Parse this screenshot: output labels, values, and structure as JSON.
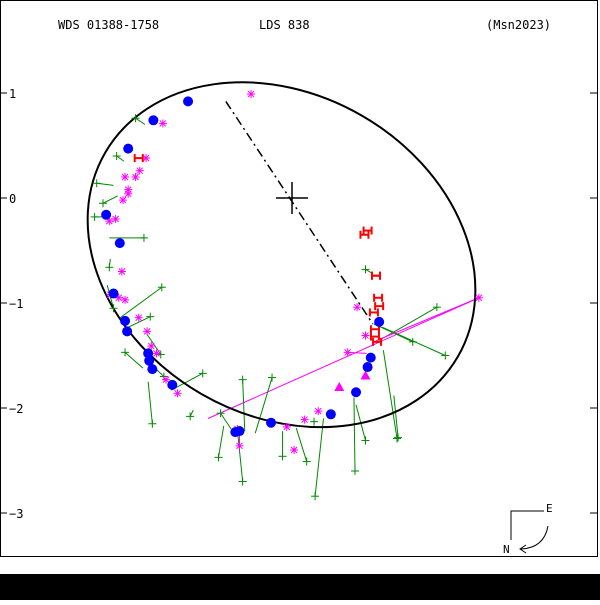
{
  "header": {
    "wds_id": "WDS 01388-1758",
    "discoverer": "LDS 838",
    "orbit_ref": "(Msn2023)"
  },
  "compass": {
    "east_label": "E",
    "north_label": "N"
  },
  "chart_data": {
    "type": "scatter",
    "title": "",
    "xlabel": "",
    "ylabel": "",
    "xlim": [
      2.75,
      -2.95
    ],
    "ylim": [
      -3.4,
      1.9
    ],
    "y_ticks": [
      1,
      0,
      -1,
      -2,
      -3
    ],
    "y_tick_labels": [
      "1",
      "0",
      "−1",
      "−2",
      "−3"
    ],
    "grid": false,
    "colors": {
      "orbit": "#000000",
      "primary": "#000000",
      "node_line": "#000000",
      "blue_dots": "#0000ff",
      "green_crosses": "#008800",
      "magenta_stars": "#ff00ff",
      "red_h": "#ff0000",
      "magenta_triangles": "#ff00ff"
    },
    "orbit": {
      "center": [
        -0.1,
        -0.54
      ],
      "semi_axes": [
        1.53,
        1.94
      ],
      "tilt_deg": 120
    },
    "primary_star": [
      0,
      0
    ],
    "line_of_nodes": [
      [
        -0.63,
        0.92
      ],
      [
        0.77,
        -1.2
      ]
    ],
    "blue_dots": [
      [
        -0.99,
        0.92
      ],
      [
        -1.32,
        0.74
      ],
      [
        -1.56,
        0.47
      ],
      [
        -1.77,
        -0.16
      ],
      [
        -1.64,
        -0.43
      ],
      [
        -1.7,
        -0.91
      ],
      [
        -1.59,
        -1.17
      ],
      [
        -1.57,
        -1.27
      ],
      [
        -1.37,
        -1.48
      ],
      [
        -1.36,
        -1.55
      ],
      [
        -1.33,
        -1.63
      ],
      [
        -1.14,
        -1.78
      ],
      [
        -0.54,
        -2.23
      ],
      [
        -0.5,
        -2.22
      ],
      [
        -0.2,
        -2.14
      ],
      [
        0.37,
        -2.06
      ],
      [
        0.61,
        -1.85
      ],
      [
        0.72,
        -1.61
      ],
      [
        0.75,
        -1.52
      ],
      [
        0.83,
        -1.18
      ]
    ],
    "green_crosses": [
      {
        "pt": [
          -1.49,
          0.76
        ],
        "fit": [
          -1.4,
          0.7
        ]
      },
      {
        "pt": [
          -1.67,
          0.4
        ],
        "fit": [
          -1.6,
          0.35
        ]
      },
      {
        "pt": [
          -1.86,
          0.14
        ],
        "fit": [
          -1.7,
          0.12
        ]
      },
      {
        "pt": [
          -1.8,
          -0.05
        ],
        "fit": [
          -1.66,
          0.02
        ]
      },
      {
        "pt": [
          -1.88,
          -0.18
        ],
        "fit": [
          -1.75,
          -0.18
        ]
      },
      {
        "pt": [
          -1.41,
          -0.38
        ],
        "fit": [
          -1.74,
          -0.38
        ]
      },
      {
        "pt": [
          -1.74,
          -0.66
        ],
        "fit": [
          -1.73,
          -0.58
        ]
      },
      {
        "pt": [
          -1.7,
          -1.05
        ],
        "fit": [
          -1.76,
          -0.83
        ]
      },
      {
        "pt": [
          -1.24,
          -0.85
        ],
        "fit": [
          -1.65,
          -1.15
        ]
      },
      {
        "pt": [
          -1.35,
          -1.13
        ],
        "fit": [
          -1.6,
          -1.25
        ]
      },
      {
        "pt": [
          -1.25,
          -1.49
        ],
        "fit": [
          -1.38,
          -1.3
        ]
      },
      {
        "pt": [
          -1.59,
          -1.47
        ],
        "fit": [
          -1.42,
          -1.62
        ]
      },
      {
        "pt": [
          -1.22,
          -1.7
        ],
        "fit": [
          -1.38,
          -1.55
        ]
      },
      {
        "pt": [
          -1.33,
          -2.15
        ],
        "fit": [
          -1.37,
          -1.75
        ]
      },
      {
        "pt": [
          -0.85,
          -1.67
        ],
        "fit": [
          -1.15,
          -1.83
        ]
      },
      {
        "pt": [
          -0.97,
          -2.08
        ],
        "fit": [
          -0.94,
          -2.02
        ]
      },
      {
        "pt": [
          -0.68,
          -2.05
        ],
        "fit": [
          -0.58,
          -2.2
        ]
      },
      {
        "pt": [
          -0.7,
          -2.47
        ],
        "fit": [
          -0.65,
          -2.17
        ]
      },
      {
        "pt": [
          -0.47,
          -2.7
        ],
        "fit": [
          -0.52,
          -2.21
        ]
      },
      {
        "pt": [
          -0.47,
          -1.73
        ],
        "fit": [
          -0.45,
          -2.22
        ]
      },
      {
        "pt": [
          -0.19,
          -1.71
        ],
        "fit": [
          -0.35,
          -2.24
        ]
      },
      {
        "pt": [
          -0.09,
          -2.46
        ],
        "fit": [
          -0.09,
          -2.22
        ]
      },
      {
        "pt": [
          0.14,
          -2.51
        ],
        "fit": [
          0.04,
          -2.19
        ]
      },
      {
        "pt": [
          0.21,
          -2.13
        ],
        "fit": [
          0.21,
          -2.15
        ]
      },
      {
        "pt": [
          0.22,
          -2.84
        ],
        "fit": [
          0.3,
          -2.1
        ]
      },
      {
        "pt": [
          0.6,
          -2.6
        ],
        "fit": [
          0.59,
          -1.9
        ]
      },
      {
        "pt": [
          0.7,
          -2.31
        ],
        "fit": [
          0.61,
          -1.97
        ]
      },
      {
        "pt": [
          1.0,
          -2.29
        ],
        "fit": [
          0.87,
          -1.45
        ]
      },
      {
        "pt": [
          1.38,
          -1.04
        ],
        "fit": [
          0.84,
          -1.35
        ]
      },
      {
        "pt": [
          1.15,
          -1.37
        ],
        "fit": [
          0.78,
          -1.2
        ]
      },
      {
        "pt": [
          1.46,
          -1.5
        ],
        "fit": [
          0.86,
          -1.23
        ]
      },
      {
        "pt": [
          0.7,
          -0.68
        ],
        "fit": [
          0.77,
          -0.72
        ]
      },
      {
        "pt": [
          1.01,
          -2.28
        ],
        "fit": [
          0.97,
          -1.88
        ]
      }
    ],
    "magenta_stars": [
      {
        "pt": [
          -0.39,
          0.99
        ]
      },
      {
        "pt": [
          -1.23,
          0.71
        ]
      },
      {
        "pt": [
          -1.39,
          0.38
        ]
      },
      {
        "pt": [
          -1.45,
          0.26
        ]
      },
      {
        "pt": [
          -1.59,
          0.2
        ]
      },
      {
        "pt": [
          -1.49,
          0.2
        ]
      },
      {
        "pt": [
          -1.56,
          0.08
        ]
      },
      {
        "pt": [
          -1.56,
          0.04
        ]
      },
      {
        "pt": [
          -1.61,
          -0.02
        ]
      },
      {
        "pt": [
          -1.68,
          -0.2
        ]
      },
      {
        "pt": [
          -1.74,
          -0.22
        ]
      },
      {
        "pt": [
          -1.62,
          -0.7
        ]
      },
      {
        "pt": [
          -1.73,
          -0.92
        ]
      },
      {
        "pt": [
          -1.65,
          -0.95
        ]
      },
      {
        "pt": [
          -1.59,
          -0.97
        ]
      },
      {
        "pt": [
          -1.46,
          -1.14
        ]
      },
      {
        "pt": [
          -1.58,
          -1.27
        ]
      },
      {
        "pt": [
          -1.38,
          -1.27
        ]
      },
      {
        "pt": [
          -1.34,
          -1.41
        ]
      },
      {
        "pt": [
          -1.29,
          -1.48
        ]
      },
      {
        "pt": [
          -1.2,
          -1.73
        ]
      },
      {
        "pt": [
          -1.09,
          -1.86
        ]
      },
      {
        "pt": [
          -0.52,
          -2.2
        ],
        "fit": [
          -0.52,
          -2.21
        ]
      },
      {
        "pt": [
          -0.5,
          -2.36
        ],
        "fit": [
          -0.5,
          -2.26
        ]
      },
      {
        "pt": [
          -0.05,
          -2.18
        ]
      },
      {
        "pt": [
          0.02,
          -2.4
        ]
      },
      {
        "pt": [
          0.12,
          -2.11
        ]
      },
      {
        "pt": [
          1.78,
          -0.95
        ],
        "fit": [
          0.8,
          -1.36
        ]
      },
      {
        "pt": [
          0.53,
          -1.47
        ],
        "fit": [
          0.71,
          -1.48
        ]
      },
      {
        "pt": [
          0.62,
          -1.04
        ]
      },
      {
        "pt": [
          0.7,
          -1.31
        ]
      },
      {
        "pt": [
          0.25,
          -2.03
        ]
      }
    ],
    "red_h": [
      [
        -1.46,
        0.38
      ],
      [
        0.72,
        -0.31
      ],
      [
        0.69,
        -0.35
      ],
      [
        0.8,
        -0.74
      ],
      [
        0.8,
        -0.74
      ],
      [
        0.82,
        -0.95
      ],
      [
        0.83,
        -1.03
      ],
      [
        0.78,
        -1.09
      ],
      [
        0.79,
        -1.25
      ],
      [
        0.79,
        -1.32
      ],
      [
        0.81,
        -1.37
      ]
    ],
    "magenta_triangles": [
      [
        0.7,
        -1.69
      ],
      [
        0.45,
        -1.8
      ]
    ],
    "magenta_line": [
      [
        1.78,
        -0.95
      ],
      [
        -0.8,
        -2.1
      ]
    ]
  }
}
